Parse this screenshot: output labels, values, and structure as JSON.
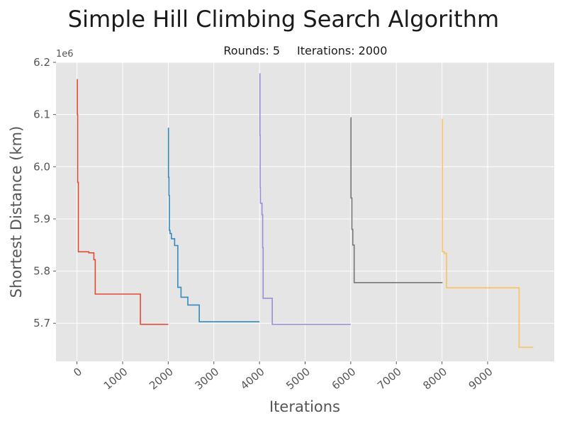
{
  "chart_data": {
    "type": "line",
    "title": "Simple Hill Climbing Search Algorithm",
    "subtitle_rounds": "Rounds: 5",
    "subtitle_iterations": "Iterations: 2000",
    "xlabel": "Iterations",
    "ylabel": "Shortest Distance (km)",
    "y_offset_label": "1e6",
    "xlim": [
      -460,
      10460
    ],
    "ylim": [
      5.627,
      6.2
    ],
    "x_ticks": [
      0,
      1000,
      2000,
      3000,
      4000,
      5000,
      6000,
      7000,
      8000,
      9000
    ],
    "x_tick_labels": [
      "0",
      "1000",
      "2000",
      "3000",
      "4000",
      "5000",
      "6000",
      "7000",
      "8000",
      "9000"
    ],
    "y_ticks": [
      5.7,
      5.8,
      5.9,
      6.0,
      6.1,
      6.2
    ],
    "y_tick_labels": [
      "5.7",
      "5.8",
      "5.9",
      "6.0",
      "6.1",
      "6.2"
    ],
    "grid": true,
    "background": "#e5e5e5",
    "grid_color": "#ffffff",
    "series": [
      {
        "color": "#e24a33",
        "step_points": [
          [
            0,
            6.167
          ],
          [
            8,
            6.1
          ],
          [
            15,
            5.97
          ],
          [
            30,
            5.837
          ],
          [
            200,
            5.837
          ],
          [
            260,
            5.835
          ],
          [
            360,
            5.835
          ],
          [
            370,
            5.822
          ],
          [
            390,
            5.822
          ],
          [
            400,
            5.756
          ],
          [
            1380,
            5.756
          ],
          [
            1390,
            5.698
          ],
          [
            2000,
            5.698
          ]
        ]
      },
      {
        "color": "#348abd",
        "step_points": [
          [
            2000,
            6.074
          ],
          [
            2005,
            5.98
          ],
          [
            2015,
            5.945
          ],
          [
            2025,
            5.878
          ],
          [
            2040,
            5.872
          ],
          [
            2060,
            5.872
          ],
          [
            2070,
            5.862
          ],
          [
            2130,
            5.862
          ],
          [
            2140,
            5.849
          ],
          [
            2200,
            5.849
          ],
          [
            2210,
            5.769
          ],
          [
            2270,
            5.769
          ],
          [
            2280,
            5.75
          ],
          [
            2420,
            5.75
          ],
          [
            2430,
            5.735
          ],
          [
            2670,
            5.735
          ],
          [
            2680,
            5.703
          ],
          [
            4000,
            5.703
          ]
        ]
      },
      {
        "color": "#988ed5",
        "step_points": [
          [
            4000,
            6.178
          ],
          [
            4010,
            6.06
          ],
          [
            4015,
            5.96
          ],
          [
            4020,
            5.93
          ],
          [
            4050,
            5.93
          ],
          [
            4055,
            5.908
          ],
          [
            4065,
            5.908
          ],
          [
            4070,
            5.845
          ],
          [
            4075,
            5.845
          ],
          [
            4080,
            5.748
          ],
          [
            4270,
            5.748
          ],
          [
            4280,
            5.698
          ],
          [
            6000,
            5.698
          ]
        ]
      },
      {
        "color": "#777777",
        "step_points": [
          [
            6000,
            6.094
          ],
          [
            6005,
            5.94
          ],
          [
            6020,
            5.94
          ],
          [
            6025,
            5.88
          ],
          [
            6040,
            5.88
          ],
          [
            6045,
            5.85
          ],
          [
            6070,
            5.85
          ],
          [
            6075,
            5.778
          ],
          [
            7500,
            5.778
          ],
          [
            8000,
            5.777
          ]
        ]
      },
      {
        "color": "#fbc15e",
        "step_points": [
          [
            8000,
            6.091
          ],
          [
            8010,
            5.837
          ],
          [
            8040,
            5.837
          ],
          [
            8050,
            5.834
          ],
          [
            8090,
            5.834
          ],
          [
            8100,
            5.768
          ],
          [
            9680,
            5.768
          ],
          [
            9690,
            5.654
          ],
          [
            10000,
            5.654
          ]
        ]
      }
    ]
  }
}
